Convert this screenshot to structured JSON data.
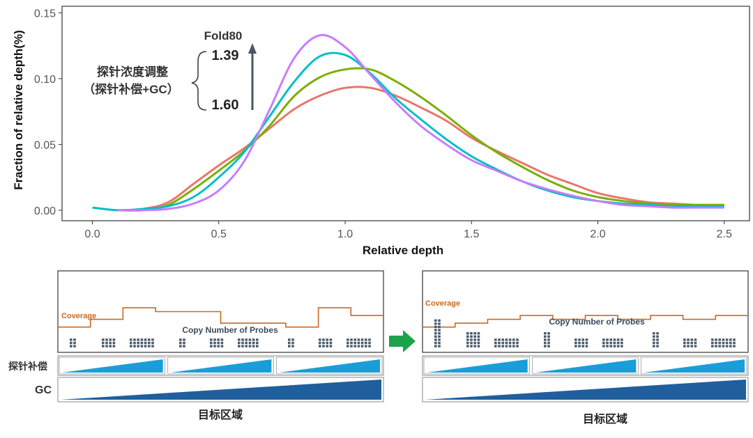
{
  "chart_data": {
    "type": "line",
    "title": "",
    "xlabel": "Relative depth",
    "ylabel": "Fraction of relative depth(%)",
    "xlim": [
      -0.12,
      2.6
    ],
    "ylim": [
      -0.008,
      0.155
    ],
    "x_ticks": [
      "0.0",
      "0.5",
      "1.0",
      "1.5",
      "2.0",
      "2.5"
    ],
    "y_ticks": [
      "0.00",
      "0.05",
      "0.10",
      "0.15"
    ],
    "grid": false,
    "legend": "none",
    "series": [
      {
        "color": "#e8766d",
        "x": [
          0.1,
          0.2,
          0.3,
          0.4,
          0.5,
          0.6,
          0.7,
          0.8,
          0.9,
          1.0,
          1.1,
          1.2,
          1.3,
          1.4,
          1.5,
          1.6,
          1.7,
          1.8,
          1.9,
          2.0,
          2.1,
          2.2,
          2.3,
          2.4,
          2.5
        ],
        "y": [
          0.0,
          0.001,
          0.006,
          0.02,
          0.034,
          0.047,
          0.062,
          0.077,
          0.087,
          0.093,
          0.093,
          0.087,
          0.078,
          0.068,
          0.055,
          0.045,
          0.036,
          0.027,
          0.02,
          0.013,
          0.009,
          0.006,
          0.005,
          0.004,
          0.004
        ]
      },
      {
        "color": "#7cae00",
        "x": [
          0.1,
          0.2,
          0.3,
          0.4,
          0.5,
          0.6,
          0.7,
          0.8,
          0.9,
          1.0,
          1.1,
          1.2,
          1.3,
          1.4,
          1.5,
          1.6,
          1.7,
          1.8,
          1.9,
          2.0,
          2.1,
          2.2,
          2.3,
          2.4,
          2.5
        ],
        "y": [
          0.0,
          0.0,
          0.004,
          0.016,
          0.03,
          0.045,
          0.064,
          0.087,
          0.101,
          0.107,
          0.107,
          0.098,
          0.086,
          0.072,
          0.057,
          0.044,
          0.033,
          0.023,
          0.015,
          0.01,
          0.007,
          0.005,
          0.004,
          0.004,
          0.004
        ]
      },
      {
        "color": "#00bfc4",
        "x": [
          0.0,
          0.1,
          0.2,
          0.3,
          0.4,
          0.5,
          0.6,
          0.7,
          0.8,
          0.9,
          1.0,
          1.1,
          1.2,
          1.3,
          1.4,
          1.5,
          1.6,
          1.7,
          1.8,
          1.9,
          2.0,
          2.1,
          2.2,
          2.3,
          2.4,
          2.5
        ],
        "y": [
          0.002,
          0.0,
          0.001,
          0.003,
          0.01,
          0.025,
          0.044,
          0.071,
          0.098,
          0.117,
          0.118,
          0.104,
          0.085,
          0.069,
          0.054,
          0.041,
          0.031,
          0.022,
          0.015,
          0.01,
          0.007,
          0.005,
          0.004,
          0.003,
          0.003,
          0.003
        ]
      },
      {
        "color": "#c77cff",
        "x": [
          0.1,
          0.2,
          0.3,
          0.4,
          0.5,
          0.6,
          0.7,
          0.8,
          0.9,
          1.0,
          1.1,
          1.2,
          1.3,
          1.4,
          1.5,
          1.6,
          1.7,
          1.8,
          1.9,
          2.0,
          2.1,
          2.2,
          2.3,
          2.4,
          2.5
        ],
        "y": [
          0.0,
          0.0,
          0.001,
          0.005,
          0.015,
          0.037,
          0.076,
          0.116,
          0.133,
          0.124,
          0.103,
          0.082,
          0.064,
          0.05,
          0.038,
          0.03,
          0.022,
          0.016,
          0.011,
          0.007,
          0.004,
          0.003,
          0.002,
          0.002,
          0.002
        ]
      }
    ]
  },
  "annotation": {
    "fold80_label": "Fold80",
    "fold80_top": "1.39",
    "fold80_bottom": "1.60",
    "group_line1": "探针浓度调整",
    "group_line2": "（探针补偿+GC）"
  },
  "diagram": {
    "coverage_label": "Coverage",
    "probes_label": "Copy Number of Probes",
    "probe_comp_label": "探针补偿",
    "gc_label": "GC",
    "region_label": "目标区域",
    "before": {
      "coverage_levels": [
        0.3,
        0.4,
        0.55,
        0.5,
        0.5,
        0.35,
        0.35,
        0.3,
        0.55,
        0.45
      ],
      "probe_copies": [
        1,
        1,
        1,
        1,
        1,
        1,
        1,
        1,
        1
      ]
    },
    "after": {
      "coverage_levels": [
        0.3,
        0.35,
        0.4,
        0.45,
        0.4,
        0.45,
        0.4,
        0.45,
        0.4,
        0.45
      ],
      "probe_copies": [
        3,
        2,
        1,
        2,
        1,
        1,
        2,
        1,
        1
      ]
    }
  },
  "colors": {
    "coverage": "#c86a1e",
    "probe": "#4a5a6a",
    "probe_comp": "#1a9ed9",
    "gc": "#1f5f9e",
    "arrow_green": "#1aa34a",
    "fold_arrow": "#4a5563"
  }
}
